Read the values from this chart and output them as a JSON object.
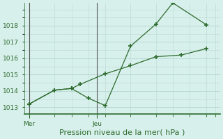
{
  "background_color": "#d8f0ec",
  "grid_color": "#b8d8d4",
  "line_color": "#2d6b2d",
  "xlabel": "Pression niveau de la mer( hPa )",
  "xlabel_fontsize": 8,
  "yticks": [
    1013,
    1014,
    1015,
    1016,
    1017,
    1018
  ],
  "ylim": [
    1012.6,
    1019.4
  ],
  "xtick_labels": [
    "Mer",
    "Jeu"
  ],
  "xtick_positions": [
    0,
    4
  ],
  "xlim": [
    -0.3,
    11.3
  ],
  "line1_x": [
    0,
    1.5,
    2.5,
    3.5,
    4.5,
    6.0,
    7.5,
    8.5,
    10.5
  ],
  "line1_y": [
    1013.2,
    1014.05,
    1014.15,
    1013.55,
    1013.1,
    1016.75,
    1018.1,
    1019.4,
    1018.05
  ],
  "line2_x": [
    0,
    1.5,
    2.5,
    3.0,
    4.5,
    6.0,
    7.5,
    9.0,
    10.5
  ],
  "line2_y": [
    1013.2,
    1014.05,
    1014.15,
    1014.4,
    1015.05,
    1015.55,
    1016.1,
    1016.2,
    1016.6
  ],
  "vline_x": [
    0,
    4
  ],
  "vline_color": "#555555",
  "tick_color": "#2d6b2d",
  "bottom_tick_xs": [
    0,
    1.5,
    2.5,
    3.5,
    4.5,
    6.0,
    7.5,
    8.5,
    9.5,
    10.5,
    11.0
  ],
  "spine_color": "#2d6b2d"
}
